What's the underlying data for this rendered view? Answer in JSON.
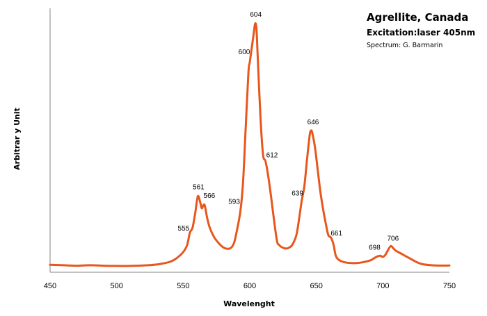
{
  "chart_data": {
    "type": "line",
    "title": "Agrellite, Canada",
    "subtitle": "Excitation:laser 405nm",
    "credit": "Spectrum: G. Barmarin",
    "xlabel": "Wavelenght",
    "ylabel": "Arbitrar y Unit",
    "xlim": [
      450,
      750
    ],
    "ylim": [
      0,
      100
    ],
    "x_ticks": [
      "450",
      "500",
      "550",
      "600",
      "650",
      "700",
      "750"
    ],
    "grid": false,
    "series_color": "#e8561c",
    "series": [
      {
        "x": [
          450,
          460,
          470,
          480,
          490,
          500,
          510,
          520,
          530,
          540,
          545,
          550,
          553,
          555,
          557,
          559,
          561,
          563,
          564,
          566,
          568,
          570,
          574,
          580,
          585,
          588,
          590,
          593,
          595,
          597,
          599,
          600,
          601,
          603,
          604,
          605,
          606,
          608,
          610,
          612,
          615,
          620,
          622,
          625,
          628,
          630,
          632,
          635,
          637,
          639,
          641,
          643,
          645,
          646,
          647,
          649,
          651,
          653,
          655,
          657,
          659,
          661,
          663,
          665,
          670,
          680,
          690,
          695,
          698,
          700,
          702,
          704,
          706,
          708,
          710,
          715,
          720,
          725,
          730,
          740,
          750
        ],
        "y": [
          0.8,
          0.6,
          0.4,
          0.6,
          0.4,
          0.3,
          0.3,
          0.5,
          0.9,
          2.0,
          3.5,
          6.0,
          9.0,
          14.0,
          16.0,
          22.0,
          29.0,
          26.0,
          24.0,
          25.5,
          20.0,
          16.0,
          11.5,
          8.0,
          7.5,
          9.5,
          14.0,
          23.0,
          35.0,
          58.0,
          80.0,
          84.0,
          88.0,
          96.0,
          100.0,
          98.0,
          86.0,
          62.0,
          46.0,
          43.0,
          33.0,
          12.0,
          9.0,
          7.8,
          7.5,
          8.0,
          9.0,
          13.0,
          19.5,
          27.0,
          33.0,
          44.0,
          54.0,
          56.0,
          55.0,
          49.0,
          40.0,
          31.0,
          24.0,
          18.0,
          13.0,
          12.0,
          9.0,
          4.0,
          2.0,
          1.5,
          2.5,
          4.0,
          4.5,
          4.0,
          5.0,
          7.0,
          8.5,
          7.5,
          6.5,
          5.0,
          3.5,
          2.0,
          1.0,
          0.5,
          0.5
        ]
      }
    ],
    "annotations": [
      {
        "text": "555",
        "x": 555,
        "y": 14.0
      },
      {
        "text": "561",
        "x": 561,
        "y": 29.0
      },
      {
        "text": "566",
        "x": 566,
        "y": 25.5
      },
      {
        "text": "593",
        "x": 593,
        "y": 23.0
      },
      {
        "text": "600",
        "x": 600,
        "y": 84.0
      },
      {
        "text": "604",
        "x": 604,
        "y": 100.0
      },
      {
        "text": "612",
        "x": 612,
        "y": 43.0
      },
      {
        "text": "639",
        "x": 639,
        "y": 27.0
      },
      {
        "text": "646",
        "x": 646,
        "y": 56.0
      },
      {
        "text": "661",
        "x": 661,
        "y": 12.0
      },
      {
        "text": "698",
        "x": 698,
        "y": 4.5
      },
      {
        "text": "706",
        "x": 706,
        "y": 8.5
      }
    ]
  }
}
